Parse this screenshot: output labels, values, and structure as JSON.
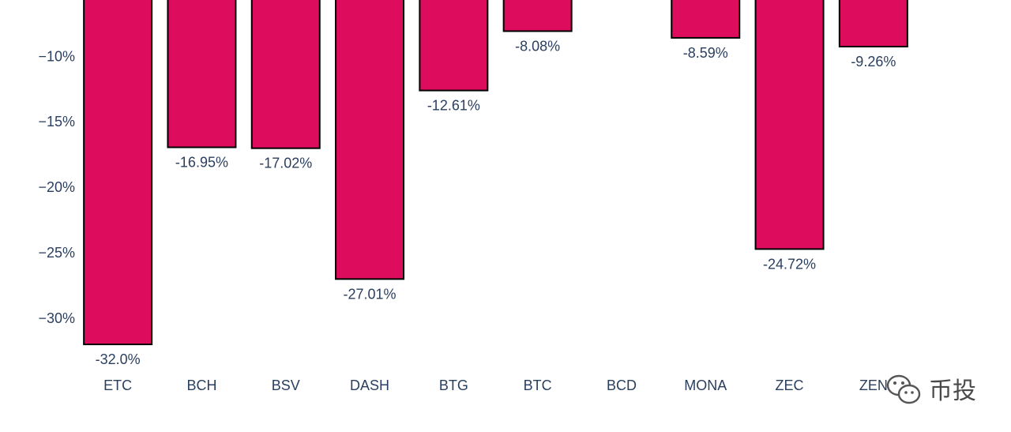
{
  "chart_data": {
    "type": "bar",
    "categories": [
      "ETC",
      "BCH",
      "BSV",
      "DASH",
      "BTG",
      "BTC",
      "BCD",
      "MONA",
      "ZEC",
      "ZEN"
    ],
    "values": [
      -32.0,
      -16.95,
      -17.02,
      -27.01,
      -12.61,
      -8.08,
      null,
      -8.59,
      -24.72,
      -9.26
    ],
    "data_labels": [
      "-32.0%",
      "-16.95%",
      "-17.02%",
      "-27.01%",
      "-12.61%",
      "-8.08%",
      "",
      "-8.59%",
      "-24.72%",
      "-9.26%"
    ],
    "y_ticks": [
      -10,
      -15,
      -20,
      -25,
      -30
    ],
    "y_tick_labels": [
      "−10%",
      "−15%",
      "−20%",
      "−25%",
      "−30%"
    ],
    "ylim": [
      -32.6,
      -5.7
    ],
    "bar_color": "#dd0c5c",
    "bar_edge_color": "#000000",
    "text_color": "#2a3f5f",
    "title": "",
    "xlabel": "",
    "ylabel": "",
    "grid": false
  },
  "watermark": {
    "text": "币投",
    "icon": "wechat-icon"
  }
}
